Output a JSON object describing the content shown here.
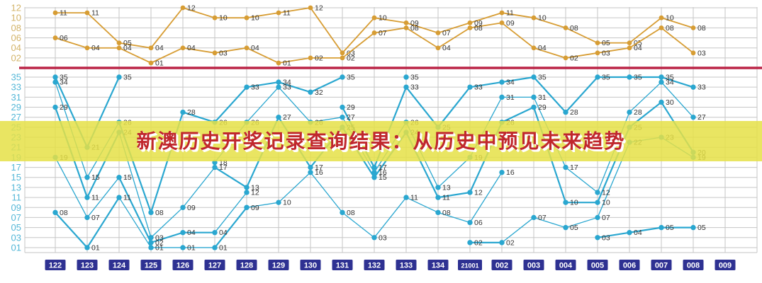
{
  "banner": {
    "text": "新澳历史开奖记录查询结果：从历史中预见未来趋势"
  },
  "chart_data": {
    "type": "line",
    "x_labels": [
      "122",
      "123",
      "124",
      "125",
      "126",
      "127",
      "128",
      "129",
      "130",
      "131",
      "132",
      "133",
      "134",
      "21001",
      "002",
      "003",
      "004",
      "005",
      "006",
      "007",
      "008",
      "009"
    ],
    "x_label_style": {
      "bg": "#2e3192",
      "fg": "#ffffff"
    },
    "divider_color": "#bb2446",
    "grid_color": "#c6c6c6",
    "top_section": {
      "y_ticks": [
        "12",
        "10",
        "08",
        "06",
        "04",
        "02"
      ],
      "tick_color": "#d3b469",
      "line_color": "#d79d34",
      "label_color": "#333333",
      "series": [
        {
          "name": "upper-line",
          "values": [
            11,
            11,
            5,
            4,
            12,
            10,
            10,
            11,
            12,
            3,
            10,
            9,
            7,
            9,
            11,
            10,
            8,
            5,
            5,
            10,
            8,
            null
          ]
        },
        {
          "name": "lower-line",
          "values": [
            6,
            4,
            4,
            1,
            4,
            3,
            4,
            1,
            2,
            2,
            7,
            8,
            4,
            8,
            9,
            4,
            2,
            3,
            4,
            8,
            3,
            null
          ]
        }
      ]
    },
    "bottom_section": {
      "y_ticks": [
        "35",
        "33",
        "31",
        "29",
        "27",
        "25",
        "23",
        "21",
        "19",
        "17",
        "15",
        "13",
        "11",
        "09",
        "07",
        "05",
        "03",
        "01"
      ],
      "tick_color": "#54b7d7",
      "line_color": "#2aa7d0",
      "label_color": "#333333",
      "columns": [
        [
          35,
          34,
          29,
          19,
          8
        ],
        [
          21,
          15,
          11,
          7,
          1
        ],
        [
          35,
          26,
          24,
          15,
          11
        ],
        [
          8,
          3,
          2,
          1
        ],
        [
          28,
          9,
          4,
          1
        ],
        [
          26,
          18,
          17,
          4,
          1
        ],
        [
          33,
          26,
          13,
          12,
          9
        ],
        [
          34,
          33,
          27,
          10
        ],
        [
          32,
          26,
          17,
          16
        ],
        [
          35,
          29,
          27,
          25,
          8
        ],
        [
          17,
          16,
          15,
          3
        ],
        [
          35,
          33,
          26,
          24,
          11
        ],
        [
          25,
          13,
          11,
          8
        ],
        [
          33,
          19,
          12,
          6,
          2
        ],
        [
          34,
          31,
          26,
          16,
          2
        ],
        [
          35,
          31,
          29,
          7
        ],
        [
          28,
          17,
          10,
          5
        ],
        [
          35,
          12,
          10,
          7,
          3
        ],
        [
          35,
          28,
          25,
          22,
          4
        ],
        [
          35,
          34,
          30,
          23,
          5
        ],
        [
          33,
          27,
          20,
          19,
          5
        ],
        []
      ]
    }
  }
}
